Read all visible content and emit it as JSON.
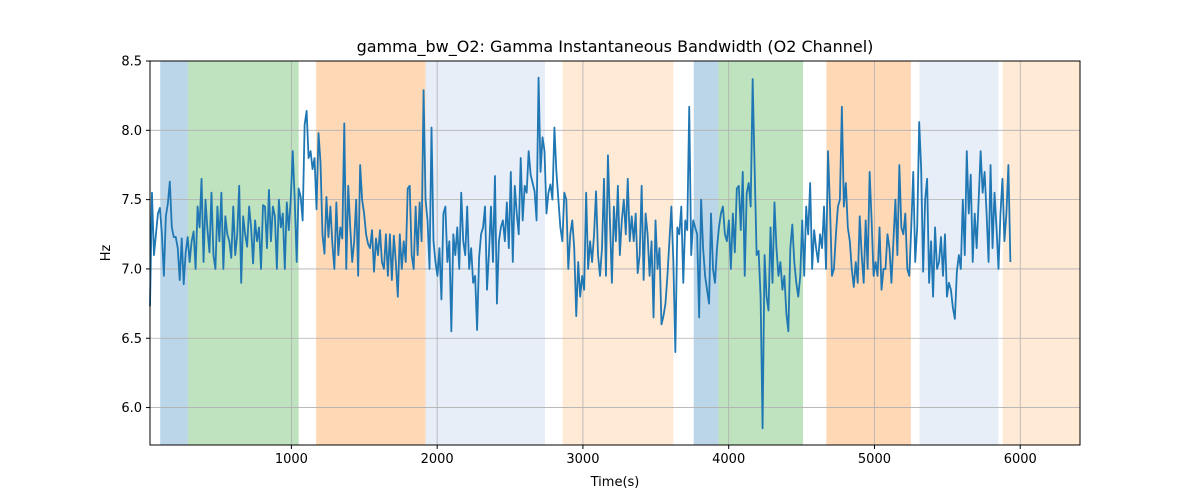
{
  "chart_data": {
    "type": "line",
    "title": "gamma_bw_O2: Gamma Instantaneous Bandwidth (O2 Channel)",
    "xlabel": "Time(s)",
    "ylabel": "Hz",
    "xlim": [
      30,
      6410
    ],
    "ylim": [
      5.73,
      8.5
    ],
    "xticks": [
      1000,
      2000,
      3000,
      4000,
      5000,
      6000
    ],
    "yticks": [
      6.0,
      6.5,
      7.0,
      7.5,
      8.0,
      8.5
    ],
    "grid": true,
    "line_color": "#1f77b4",
    "bands": [
      {
        "start": 100,
        "end": 290,
        "color": "#1f77b4",
        "alpha": 0.3
      },
      {
        "start": 290,
        "end": 1050,
        "color": "#2ca02c",
        "alpha": 0.3
      },
      {
        "start": 1170,
        "end": 1920,
        "color": "#ff7f0e",
        "alpha": 0.3
      },
      {
        "start": 1920,
        "end": 2740,
        "color": "#aec7e8",
        "alpha": 0.3
      },
      {
        "start": 2860,
        "end": 3620,
        "color": "#ffbb78",
        "alpha": 0.3
      },
      {
        "start": 3760,
        "end": 3930,
        "color": "#1f77b4",
        "alpha": 0.3
      },
      {
        "start": 3930,
        "end": 4510,
        "color": "#2ca02c",
        "alpha": 0.3
      },
      {
        "start": 4670,
        "end": 5250,
        "color": "#ff7f0e",
        "alpha": 0.3
      },
      {
        "start": 5310,
        "end": 5850,
        "color": "#aec7e8",
        "alpha": 0.3
      },
      {
        "start": 5880,
        "end": 6410,
        "color": "#ffbb78",
        "alpha": 0.3
      }
    ],
    "series": [
      {
        "x_start": 30,
        "x_step": 13.6,
        "values": [
          6.73,
          7.55,
          7.1,
          7.25,
          7.4,
          7.44,
          7.25,
          6.95,
          7.38,
          7.47,
          7.63,
          7.3,
          7.23,
          7.23,
          7.15,
          6.92,
          7.22,
          6.89,
          7.12,
          7.23,
          7.05,
          7.2,
          7.27,
          7.0,
          7.45,
          7.3,
          7.65,
          7.05,
          7.5,
          7.28,
          7.12,
          7.55,
          7.1,
          7.0,
          7.45,
          7.2,
          7.55,
          7.0,
          7.38,
          7.25,
          7.2,
          7.08,
          7.45,
          7.1,
          7.25,
          7.6,
          6.9,
          7.38,
          7.25,
          7.16,
          7.45,
          7.3,
          7.04,
          7.35,
          7.2,
          7.3,
          7.0,
          7.46,
          7.45,
          7.15,
          7.57,
          7.2,
          7.45,
          7.38,
          7.0,
          7.5,
          7.3,
          7.4,
          7.0,
          7.48,
          7.28,
          7.5,
          7.85,
          7.5,
          7.05,
          7.58,
          7.52,
          7.35,
          8.04,
          8.14,
          7.8,
          7.85,
          7.72,
          7.8,
          7.43,
          7.98,
          7.77,
          7.25,
          7.11,
          7.52,
          7.23,
          7.45,
          7.18,
          7.0,
          7.48,
          7.1,
          7.3,
          7.22,
          8.05,
          7.0,
          7.6,
          7.3,
          7.05,
          7.2,
          7.5,
          6.95,
          7.75,
          7.5,
          7.4,
          7.25,
          7.18,
          7.15,
          7.28,
          6.98,
          7.22,
          7.1,
          7.28,
          7.05,
          7.0,
          7.25,
          6.95,
          7.25,
          6.92,
          7.24,
          7.05,
          6.8,
          7.25,
          7.0,
          7.2,
          7.05,
          7.58,
          7.6,
          7.1,
          7.0,
          7.45,
          7.1,
          7.48,
          7.2,
          8.29,
          7.5,
          7.35,
          7.0,
          8.02,
          7.2,
          7.05,
          6.95,
          7.15,
          6.78,
          7.4,
          7.45,
          7.05,
          7.2,
          6.55,
          7.25,
          7.1,
          7.3,
          7.0,
          7.55,
          7.2,
          7.1,
          7.45,
          7.0,
          7.15,
          6.9,
          6.95,
          6.56,
          7.08,
          7.25,
          7.3,
          7.45,
          6.85,
          7.12,
          7.45,
          7.05,
          7.67,
          6.75,
          7.2,
          7.3,
          7.35,
          7.2,
          7.48,
          7.15,
          7.7,
          7.05,
          7.6,
          7.4,
          7.25,
          7.8,
          7.35,
          7.6,
          7.55,
          7.85,
          7.68,
          7.62,
          7.56,
          7.35,
          8.38,
          7.7,
          7.95,
          7.85,
          7.4,
          7.55,
          7.61,
          7.5,
          8.02,
          7.7,
          7.5,
          7.3,
          7.2,
          7.55,
          7.5,
          7.0,
          7.25,
          7.35,
          7.15,
          6.66,
          7.05,
          6.8,
          6.95,
          6.85,
          7.55,
          7.0,
          7.2,
          7.05,
          7.25,
          7.56,
          7.1,
          6.95,
          7.15,
          7.65,
          6.95,
          7.82,
          7.35,
          6.9,
          7.45,
          7.2,
          7.6,
          7.1,
          7.35,
          7.5,
          7.25,
          7.65,
          7.2,
          7.38,
          7.2,
          7.4,
          6.97,
          7.1,
          7.6,
          6.92,
          7.4,
          7.25,
          6.95,
          7.2,
          6.65,
          7.35,
          7.0,
          7.15,
          6.6,
          6.66,
          6.75,
          6.95,
          7.2,
          7.45,
          7.05,
          6.4,
          7.3,
          7.25,
          7.45,
          6.9,
          7.35,
          7.28,
          8.17,
          7.1,
          7.35,
          7.3,
          7.25,
          6.65,
          7.5,
          7.15,
          6.95,
          6.85,
          6.75,
          7.4,
          7.0,
          6.9,
          7.15,
          7.3,
          7.4,
          7.45,
          7.25,
          7.2,
          7.35,
          7.0,
          7.4,
          7.12,
          7.58,
          7.6,
          7.28,
          7.7,
          6.95,
          7.55,
          7.62,
          7.45,
          8.37,
          7.72,
          7.1,
          7.13,
          6.8,
          5.85,
          7.1,
          6.8,
          6.7,
          7.3,
          6.9,
          7.48,
          7.15,
          6.95,
          7.05,
          6.85,
          6.95,
          6.68,
          6.55,
          7.15,
          7.32,
          7.05,
          6.9,
          6.8,
          6.95,
          7.35,
          6.95,
          7.45,
          7.25,
          7.62,
          7.0,
          7.28,
          7.15,
          7.05,
          7.25,
          7.15,
          7.45,
          7.0,
          7.85,
          7.45,
          6.95,
          7.0,
          7.25,
          7.45,
          7.5,
          8.17,
          7.45,
          7.62,
          7.3,
          7.2,
          7.0,
          6.87,
          7.05,
          6.9,
          7.38,
          7.1,
          6.9,
          7.35,
          7.0,
          7.7,
          7.35,
          6.95,
          7.05,
          6.95,
          7.3,
          6.85,
          7.0,
          7.0,
          7.25,
          7.15,
          6.9,
          7.2,
          7.5,
          7.1,
          7.75,
          7.3,
          7.25,
          7.4,
          7.0,
          6.95,
          7.3,
          7.7,
          7.05,
          7.3,
          8.06,
          7.72,
          6.98,
          7.5,
          7.65,
          6.9,
          7.2,
          6.8,
          7.3,
          7.0,
          7.05,
          7.23,
          6.95,
          7.25,
          6.8,
          6.9,
          6.85,
          6.72,
          6.64,
          6.98,
          7.1,
          7.0,
          7.5,
          7.1,
          7.85,
          7.4,
          7.68,
          7.05,
          7.4,
          7.15,
          7.5,
          7.85,
          7.55,
          7.7,
          7.4,
          7.05,
          7.75,
          7.15,
          7.55,
          7.3,
          7.0,
          7.4,
          7.65,
          7.2,
          7.4,
          7.75,
          7.05
        ]
      }
    ]
  }
}
